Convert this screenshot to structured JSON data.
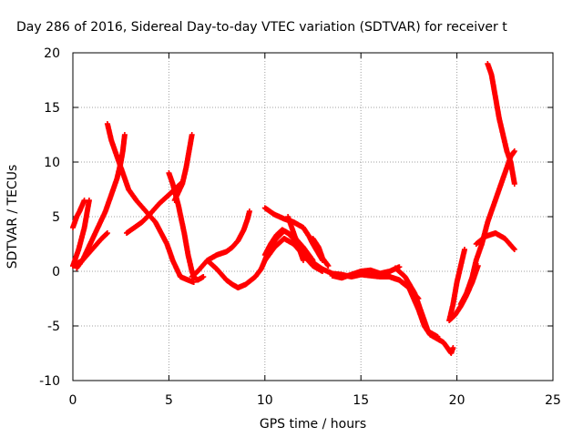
{
  "chart_data": {
    "type": "scatter",
    "title": "Day 286 of 2016, Sidereal Day-to-day VTEC variation (SDTVAR) for receiver t",
    "xlabel": "GPS time / hours",
    "ylabel": "SDTVAR / TECUs",
    "xlim": [
      0,
      25
    ],
    "ylim": [
      -10,
      20
    ],
    "xticks": [
      "0",
      "5",
      "10",
      "15",
      "20",
      "25"
    ],
    "yticks": [
      "-10",
      "-5",
      "0",
      "5",
      "10",
      "15",
      "20"
    ],
    "grid": true,
    "legend": "none",
    "marker": "+",
    "color": "#ff0000",
    "series": [
      {
        "x": [
          0.0,
          0.2,
          0.35,
          0.6
        ],
        "y": [
          4.0,
          5.0,
          5.5,
          6.5
        ]
      },
      {
        "x": [
          0.0,
          0.3,
          0.6,
          0.85
        ],
        "y": [
          0.5,
          2.0,
          4.0,
          6.5
        ]
      },
      {
        "x": [
          0.0,
          0.5,
          1.0,
          1.5,
          1.8
        ],
        "y": [
          0.5,
          1.0,
          2.0,
          3.0,
          3.5
        ]
      },
      {
        "x": [
          0.2,
          0.5,
          0.9,
          1.3,
          1.7,
          2.0,
          2.3,
          2.5,
          2.6,
          2.7
        ],
        "y": [
          0.3,
          1.0,
          2.5,
          4.0,
          5.5,
          7.0,
          8.5,
          10.0,
          11.0,
          12.5
        ]
      },
      {
        "x": [
          1.8,
          2.0,
          2.3,
          2.6,
          2.9,
          3.3,
          3.8,
          4.3,
          4.9,
          5.2,
          5.6,
          6.0,
          6.3
        ],
        "y": [
          13.5,
          12.0,
          10.5,
          9.0,
          7.5,
          6.5,
          5.5,
          4.5,
          2.5,
          1.0,
          -0.5,
          -0.8,
          -1.0
        ]
      },
      {
        "x": [
          2.8,
          3.2,
          3.6,
          4.0,
          4.5,
          5.0,
          5.3,
          5.6
        ],
        "y": [
          3.5,
          4.0,
          4.5,
          5.2,
          6.2,
          7.0,
          7.5,
          8.0
        ]
      },
      {
        "x": [
          5.0,
          5.2,
          5.5,
          5.8,
          6.0,
          6.2,
          6.3,
          6.5,
          6.8
        ],
        "y": [
          9.0,
          8.0,
          6.0,
          3.5,
          1.5,
          0.0,
          -0.5,
          -0.8,
          -0.5
        ]
      },
      {
        "x": [
          5.3,
          5.7,
          5.9,
          6.0,
          6.1,
          6.2
        ],
        "y": [
          6.5,
          8.0,
          9.5,
          10.5,
          11.5,
          12.5
        ]
      },
      {
        "x": [
          6.2,
          6.5,
          7.0,
          7.5,
          8.0,
          8.3,
          8.6,
          8.9,
          9.1,
          9.2
        ],
        "y": [
          -0.5,
          0.0,
          1.0,
          1.5,
          1.8,
          2.2,
          2.8,
          3.8,
          4.8,
          5.5
        ]
      },
      {
        "x": [
          7.0,
          7.5,
          8.0,
          8.3,
          8.6,
          9.0,
          9.5,
          9.8,
          10.0,
          10.2
        ],
        "y": [
          1.0,
          0.2,
          -0.8,
          -1.2,
          -1.5,
          -1.2,
          -0.5,
          0.2,
          1.0,
          2.0
        ]
      },
      {
        "x": [
          10.0,
          10.3,
          10.6,
          10.9,
          11.2,
          11.6,
          12.0,
          12.5,
          13.0,
          13.5,
          14.0,
          14.5,
          15.0,
          15.5,
          16.0,
          16.5,
          17.0,
          17.5,
          18.0
        ],
        "y": [
          1.5,
          2.5,
          3.3,
          3.8,
          3.5,
          2.8,
          1.8,
          0.8,
          0.2,
          -0.2,
          -0.3,
          -0.5,
          -0.3,
          -0.4,
          -0.5,
          -0.5,
          -0.8,
          -1.5,
          -2.5
        ]
      },
      {
        "x": [
          10.0,
          10.5,
          11.0,
          11.5,
          12.0,
          12.5,
          13.0
        ],
        "y": [
          1.0,
          2.2,
          3.0,
          2.5,
          1.5,
          0.5,
          0.0
        ]
      },
      {
        "x": [
          10.2,
          10.6,
          11.0,
          11.5,
          12.0,
          12.5
        ],
        "y": [
          2.0,
          3.0,
          3.7,
          3.2,
          2.2,
          1.0
        ]
      },
      {
        "x": [
          10.0,
          10.5,
          11.0,
          11.5,
          12.0,
          12.3,
          12.5,
          13.0
        ],
        "y": [
          5.8,
          5.2,
          4.8,
          4.5,
          4.0,
          3.2,
          2.5,
          1.0
        ]
      },
      {
        "x": [
          11.2,
          11.5,
          11.8,
          12.0
        ],
        "y": [
          5.0,
          3.5,
          2.0,
          1.0
        ]
      },
      {
        "x": [
          12.5,
          12.8,
          13.0,
          13.3
        ],
        "y": [
          3.0,
          2.2,
          1.2,
          0.5
        ]
      },
      {
        "x": [
          13.5,
          14.0,
          14.5,
          15.0,
          15.5,
          16.0,
          16.5,
          17.0
        ],
        "y": [
          -0.4,
          -0.6,
          -0.3,
          0.0,
          0.1,
          -0.2,
          0.0,
          0.4
        ]
      },
      {
        "x": [
          16.5,
          17.0,
          17.5,
          18.0,
          18.3,
          18.6,
          19.0,
          19.3,
          19.5,
          19.7,
          19.8
        ],
        "y": [
          -0.5,
          -0.8,
          -1.5,
          -3.5,
          -5.0,
          -5.8,
          -6.2,
          -6.5,
          -7.0,
          -7.5,
          -7.0
        ]
      },
      {
        "x": [
          16.8,
          17.3,
          17.8,
          18.2,
          18.5,
          19.0
        ],
        "y": [
          0.3,
          -0.5,
          -2.0,
          -4.0,
          -5.5,
          -6.0
        ]
      },
      {
        "x": [
          19.6,
          19.8,
          20.0,
          20.2,
          20.4
        ],
        "y": [
          -4.5,
          -3.0,
          -1.0,
          0.5,
          2.0
        ]
      },
      {
        "x": [
          19.6,
          19.9,
          20.2,
          20.5,
          20.8,
          21.1
        ],
        "y": [
          -4.5,
          -4.0,
          -3.2,
          -2.2,
          -1.0,
          0.5
        ]
      },
      {
        "x": [
          20.2,
          20.5,
          20.8,
          21.0,
          21.3,
          21.6,
          21.9,
          22.2,
          22.5,
          22.8,
          23.0
        ],
        "y": [
          -3.0,
          -2.0,
          -0.5,
          1.0,
          2.5,
          4.5,
          6.0,
          7.5,
          9.0,
          10.5,
          11.0
        ]
      },
      {
        "x": [
          21.0,
          21.5,
          22.0,
          22.5,
          23.0
        ],
        "y": [
          2.5,
          3.2,
          3.5,
          3.0,
          2.0
        ]
      },
      {
        "x": [
          21.6,
          21.8,
          22.0,
          22.2,
          22.4,
          22.6,
          22.8,
          23.0
        ],
        "y": [
          19.0,
          18.0,
          16.0,
          14.0,
          12.5,
          11.0,
          10.0,
          8.0
        ]
      }
    ]
  }
}
